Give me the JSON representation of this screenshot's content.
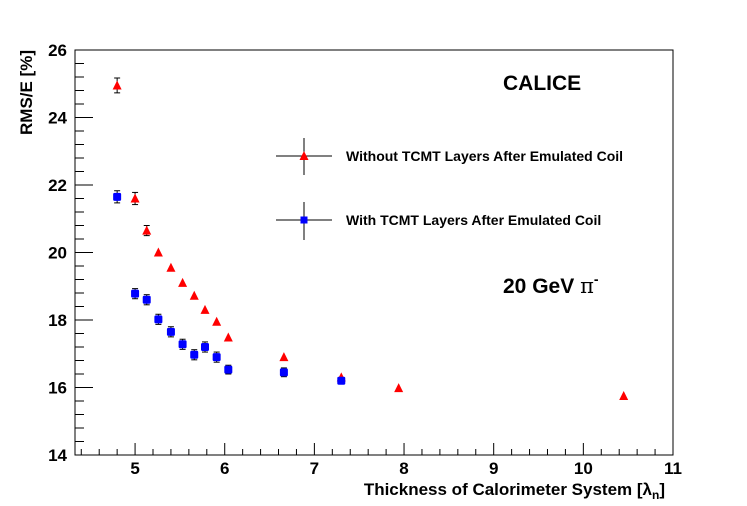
{
  "chart_data": {
    "type": "scatter",
    "title": "",
    "xlabel": "Thickness of Calorimeter System [λ",
    "xlabel_sub": "n",
    "xlabel_close": "]",
    "ylabel": "RMS/E [%]",
    "xlim": [
      4.33,
      11.0
    ],
    "ylim": [
      14,
      26
    ],
    "x_ticks": [
      5,
      6,
      7,
      8,
      9,
      10,
      11
    ],
    "y_ticks": [
      14,
      16,
      18,
      20,
      22,
      24,
      26
    ],
    "grid": false,
    "legend_position": "top-right",
    "annotations": {
      "experiment": "CALICE",
      "beam": "20 GeV",
      "particle": "π",
      "charge": "-"
    },
    "series": [
      {
        "name": "Without TCMT Layers After Emulated Coil",
        "marker": "triangle",
        "color": "#ff0000",
        "points": [
          {
            "x": 4.8,
            "y": 24.95,
            "err": 0.22
          },
          {
            "x": 5.0,
            "y": 21.6,
            "err": 0.18
          },
          {
            "x": 5.13,
            "y": 20.65,
            "err": 0.15
          },
          {
            "x": 5.26,
            "y": 20.0,
            "err": 0.0
          },
          {
            "x": 5.4,
            "y": 19.55,
            "err": 0.0
          },
          {
            "x": 5.53,
            "y": 19.1,
            "err": 0.0
          },
          {
            "x": 5.66,
            "y": 18.72,
            "err": 0.0
          },
          {
            "x": 5.78,
            "y": 18.3,
            "err": 0.0
          },
          {
            "x": 5.91,
            "y": 17.95,
            "err": 0.0
          },
          {
            "x": 6.04,
            "y": 17.48,
            "err": 0.0
          },
          {
            "x": 6.66,
            "y": 16.9,
            "err": 0.0
          },
          {
            "x": 7.3,
            "y": 16.3,
            "err": 0.0
          },
          {
            "x": 7.94,
            "y": 15.98,
            "err": 0.0
          },
          {
            "x": 10.45,
            "y": 15.75,
            "err": 0.0
          }
        ]
      },
      {
        "name": "With TCMT Layers After Emulated Coil",
        "marker": "square",
        "color": "#0000ff",
        "points": [
          {
            "x": 4.8,
            "y": 21.65,
            "err": 0.18
          },
          {
            "x": 5.0,
            "y": 18.78,
            "err": 0.15
          },
          {
            "x": 5.13,
            "y": 18.6,
            "err": 0.15
          },
          {
            "x": 5.26,
            "y": 18.02,
            "err": 0.15
          },
          {
            "x": 5.4,
            "y": 17.65,
            "err": 0.15
          },
          {
            "x": 5.53,
            "y": 17.28,
            "err": 0.15
          },
          {
            "x": 5.66,
            "y": 16.97,
            "err": 0.15
          },
          {
            "x": 5.78,
            "y": 17.2,
            "err": 0.15
          },
          {
            "x": 5.91,
            "y": 16.9,
            "err": 0.15
          },
          {
            "x": 6.04,
            "y": 16.53,
            "err": 0.13
          },
          {
            "x": 6.66,
            "y": 16.45,
            "err": 0.13
          },
          {
            "x": 7.3,
            "y": 16.2,
            "err": 0.0
          }
        ]
      }
    ]
  }
}
